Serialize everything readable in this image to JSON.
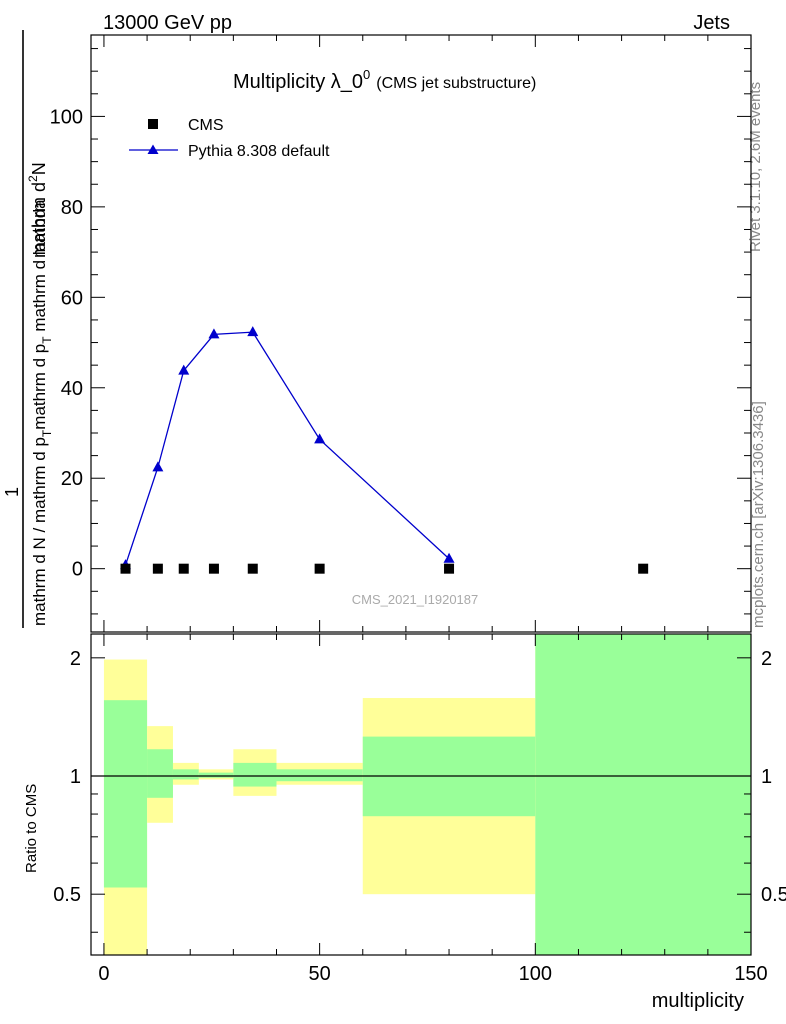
{
  "header": {
    "left": "13000 GeV pp",
    "right": "Jets"
  },
  "side_labels": {
    "rivet": "Rivet 3.1.10,  2.6M events",
    "mcplots": "mcplots.cern.ch [arXiv:1306.3436]"
  },
  "watermark": "CMS_2021_I1920187",
  "colors": {
    "cms": "#000000",
    "pythia": "#0000cc",
    "band_inner": "#99ff99",
    "band_outer": "#ffff99"
  },
  "chart_data": [
    {
      "type": "line",
      "title": "Multiplicity λ_0",
      "title_sup": "0",
      "subtitle": "(CMS jet substructure)",
      "ylabel_numerator": "mathrm d",
      "ylabel_numerator_sup": "2",
      "ylabel_numerator_end": "N",
      "ylabel_prefix": "1",
      "ylabel_den_a": "mathrm d N / mathrm d p",
      "ylabel_den_b": "mathrm d p",
      "ylabel_den_c": " mathrm d lambda",
      "ylabel_sub": "T",
      "ylim": [
        -14,
        118
      ],
      "yticks": [
        0,
        20,
        40,
        60,
        80,
        100
      ],
      "ytick_labels": [
        "0",
        "20",
        "40",
        "60",
        "80",
        "100"
      ],
      "xlim": [
        -3,
        150
      ],
      "legend": {
        "placement": "top-left",
        "entries": [
          "CMS",
          "Pythia 8.308 default"
        ]
      },
      "series": [
        {
          "name": "CMS",
          "marker": "square",
          "x": [
            5,
            12.5,
            18.5,
            25.5,
            34.5,
            50,
            80,
            125
          ],
          "y": [
            0,
            0,
            0,
            0,
            0,
            0,
            0,
            0
          ]
        },
        {
          "name": "Pythia 8.308 default",
          "marker": "triangle",
          "x": [
            5,
            12.5,
            18.5,
            25.5,
            34.5,
            50,
            80
          ],
          "y": [
            0.8,
            22.4,
            43.8,
            51.8,
            52.3,
            28.6,
            2.2
          ]
        }
      ]
    },
    {
      "type": "area",
      "ylabel": "Ratio to CMS",
      "xlabel": "multiplicity",
      "ylim": [
        0.35,
        2.3
      ],
      "yticks": [
        0.5,
        1,
        2
      ],
      "ytick_labels": [
        "0.5",
        "1",
        "2"
      ],
      "xlim": [
        -3,
        150
      ],
      "xticks": [
        0,
        50,
        100,
        150
      ],
      "xtick_labels": [
        "0",
        "50",
        "100",
        "150"
      ],
      "scale": "log",
      "reference_line": 1,
      "bands": [
        {
          "x0": 0,
          "x1": 10,
          "inner": [
            0.52,
            1.56
          ],
          "outer": [
            0.3,
            1.98
          ]
        },
        {
          "x0": 10,
          "x1": 16,
          "inner": [
            0.88,
            1.17
          ],
          "outer": [
            0.76,
            1.34
          ]
        },
        {
          "x0": 16,
          "x1": 22,
          "inner": [
            0.98,
            1.04
          ],
          "outer": [
            0.95,
            1.08
          ]
        },
        {
          "x0": 22,
          "x1": 30,
          "inner": [
            0.99,
            1.02
          ],
          "outer": [
            0.98,
            1.04
          ]
        },
        {
          "x0": 30,
          "x1": 40,
          "inner": [
            0.94,
            1.08
          ],
          "outer": [
            0.89,
            1.17
          ]
        },
        {
          "x0": 40,
          "x1": 60,
          "inner": [
            0.97,
            1.04
          ],
          "outer": [
            0.95,
            1.08
          ]
        },
        {
          "x0": 60,
          "x1": 100,
          "inner": [
            0.79,
            1.26
          ],
          "outer": [
            0.5,
            1.58
          ]
        },
        {
          "x0": 100,
          "x1": 150,
          "inner": [
            0.3,
            2.4
          ],
          "outer": [
            0.3,
            2.4
          ]
        }
      ]
    }
  ]
}
